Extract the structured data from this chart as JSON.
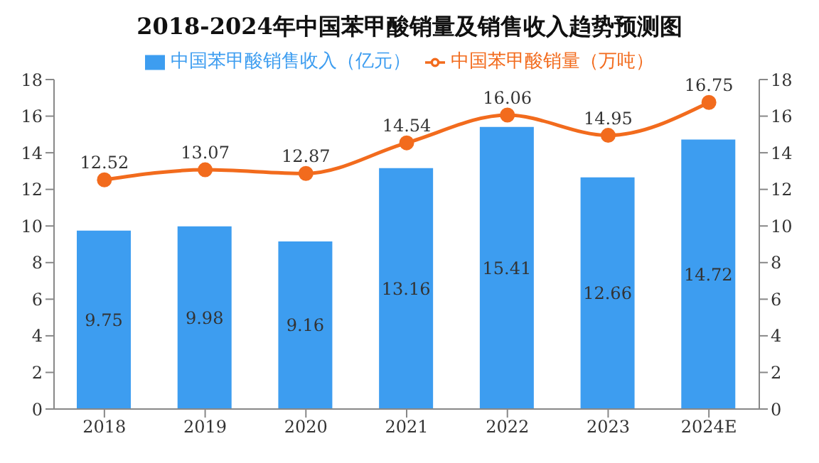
{
  "chart_data": {
    "type": "bar",
    "title": "2018-2024年中国苯甲酸销量及销售收入趋势预测图",
    "categories": [
      "2018",
      "2019",
      "2020",
      "2021",
      "2022",
      "2023",
      "2024E"
    ],
    "series": [
      {
        "name": "中国苯甲酸销售收入（亿元）",
        "color": "#3d9df0",
        "values": [
          9.75,
          9.98,
          9.16,
          13.16,
          15.41,
          12.66,
          14.72
        ]
      },
      {
        "name": "中国苯甲酸销量（万吨）",
        "type": "line",
        "axis": "y2",
        "color": "#f26b1d",
        "marker": "circle",
        "values": [
          12.52,
          13.07,
          12.87,
          14.54,
          16.06,
          14.95,
          16.75
        ]
      }
    ],
    "ylim": [
      0,
      18
    ],
    "yticks": [
      0,
      2,
      4,
      6,
      8,
      10,
      12,
      14,
      16,
      18
    ],
    "y2lim": [
      0,
      18
    ],
    "y2ticks": [
      0,
      2,
      4,
      6,
      8,
      10,
      12,
      14,
      16,
      18
    ],
    "data_labels": true,
    "legend": "top",
    "grid": false
  }
}
